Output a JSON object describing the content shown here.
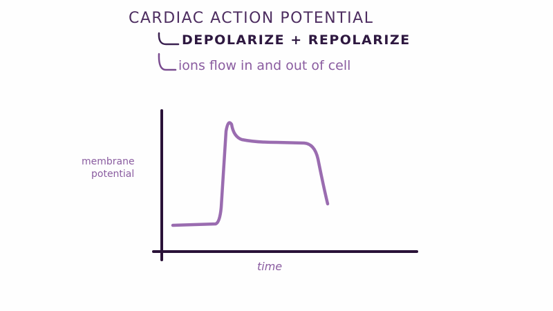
{
  "heading": {
    "title": "CARDIAC ACTION POTENTIAL",
    "branch_1": "DEPOLARIZE + REPOLARIZE",
    "branch_2": "ions flow in and out of cell"
  },
  "graph": {
    "y_axis_label_line1": "membrane",
    "y_axis_label_line2": "potential",
    "x_axis_label": "time"
  },
  "colors": {
    "title": "#4d2d60",
    "emphasis": "#2e1840",
    "annotation": "#8a5ca0",
    "curve": "#9a6cb0",
    "axes": "#2a1238"
  }
}
